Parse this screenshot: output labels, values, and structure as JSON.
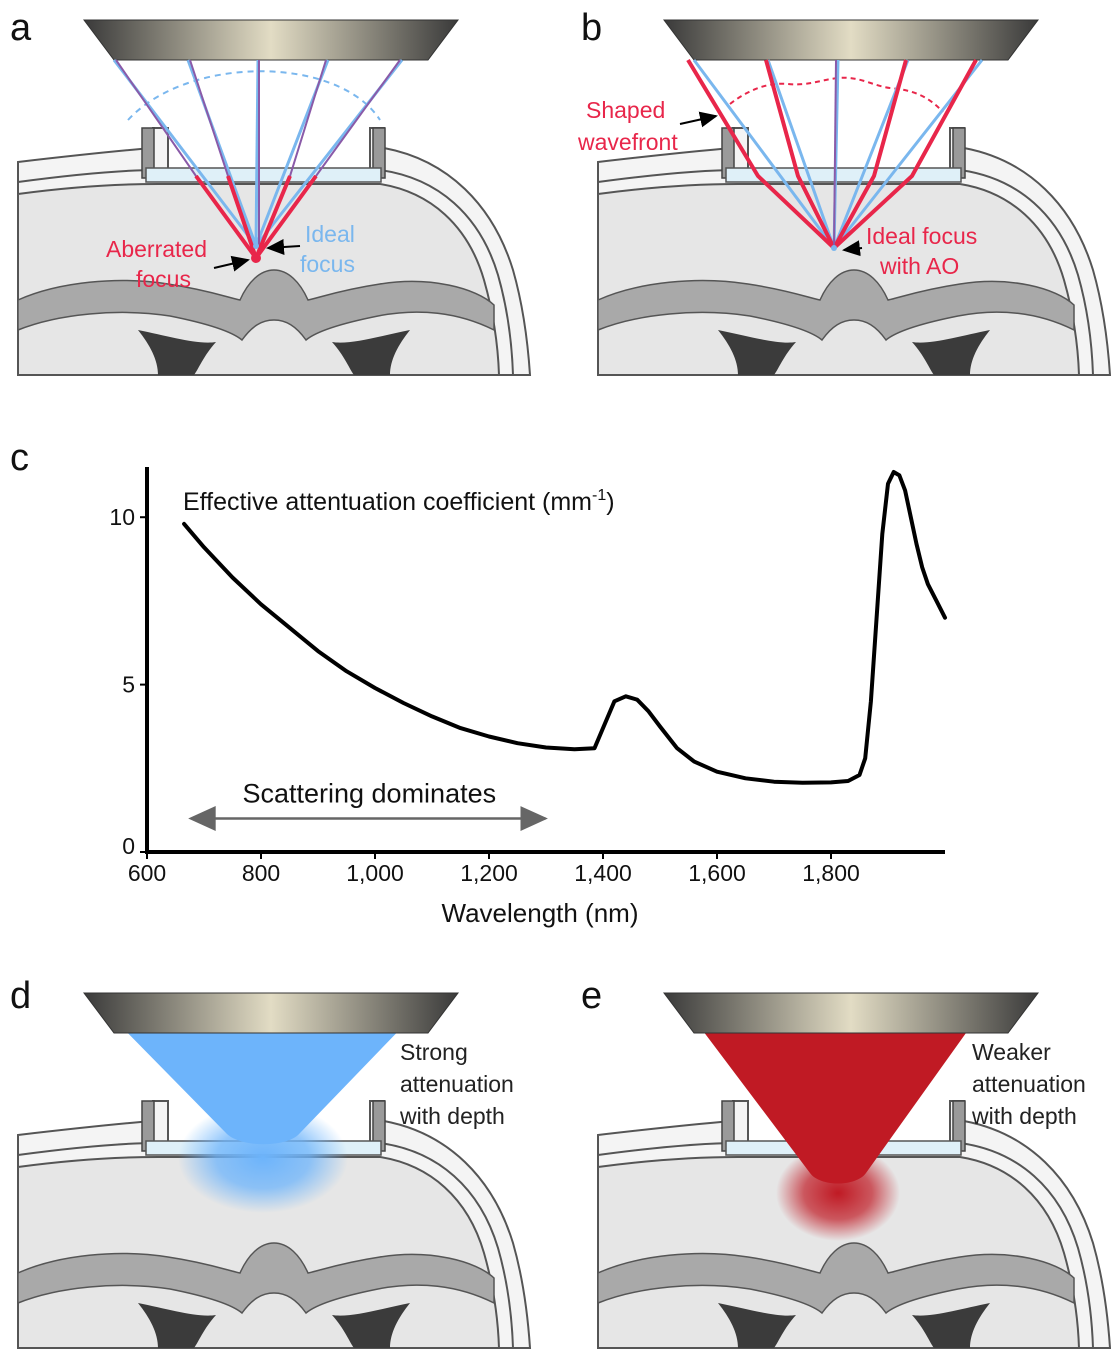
{
  "panels": {
    "a": {
      "letter": "a",
      "aberrated_label_1": "Aberrated",
      "aberrated_label_2": "focus",
      "ideal_label_1": "Ideal",
      "ideal_label_2": "focus"
    },
    "b": {
      "letter": "b",
      "wavefront_label_1": "Shaped",
      "wavefront_label_2": "wavefront",
      "ideal_ao_label_1": "Ideal focus",
      "ideal_ao_label_2": "with AO"
    },
    "c": {
      "letter": "c"
    },
    "d": {
      "letter": "d",
      "text_1": "Strong",
      "text_2": "attenuation",
      "text_3": "with depth",
      "beam_color": "#6db4fb"
    },
    "e": {
      "letter": "e",
      "text_1": "Weaker",
      "text_2": "attenuation",
      "text_3": "with depth",
      "beam_color": "#c01a24"
    }
  },
  "colors": {
    "red_ray": "#e8264a",
    "blue_ray": "#7ab7ee",
    "purple_ray": "#8a5aa8",
    "tissue": "#e6e6e6",
    "skull": "#a9a9a9",
    "dark_tissue": "#3b3b3b"
  },
  "chart_data": {
    "type": "line",
    "title": "Effective attentuation coefficient (mm",
    "title_superscript": "-1",
    "title_close": ")",
    "xlabel": "Wavelength (nm)",
    "ylabel": "",
    "xlim": [
      600,
      2000
    ],
    "ylim": [
      0,
      11.5
    ],
    "x_ticks": [
      600,
      800,
      1000,
      1200,
      1400,
      1600,
      1800
    ],
    "x_tick_labels": [
      "600",
      "800",
      "1,000",
      "1,200",
      "1,400",
      "1,600",
      "1,800"
    ],
    "y_ticks": [
      0,
      5,
      10
    ],
    "y_tick_labels": [
      "0",
      "5",
      "10"
    ],
    "annotation": {
      "text": "Scattering dominates",
      "x_range": [
        660,
        1320
      ],
      "y": 1.0
    },
    "series": [
      {
        "x": [
          665,
          700,
          750,
          800,
          850,
          900,
          950,
          1000,
          1050,
          1100,
          1150,
          1200,
          1250,
          1300,
          1350,
          1385,
          1400,
          1420,
          1440,
          1460,
          1480,
          1500,
          1530,
          1560,
          1600,
          1650,
          1700,
          1750,
          1800,
          1830,
          1850,
          1860,
          1870,
          1880,
          1890,
          1900,
          1910,
          1920,
          1930,
          1940,
          1950,
          1960,
          1970,
          1985,
          2000
        ],
        "y": [
          9.8,
          9.1,
          8.2,
          7.4,
          6.7,
          6.0,
          5.4,
          4.9,
          4.45,
          4.05,
          3.7,
          3.45,
          3.25,
          3.12,
          3.07,
          3.1,
          3.7,
          4.5,
          4.65,
          4.55,
          4.2,
          3.75,
          3.1,
          2.7,
          2.4,
          2.2,
          2.1,
          2.07,
          2.08,
          2.12,
          2.3,
          2.8,
          4.5,
          7.0,
          9.5,
          11.0,
          11.35,
          11.25,
          10.8,
          10.0,
          9.2,
          8.5,
          8.0,
          7.5,
          7.0
        ]
      }
    ]
  }
}
